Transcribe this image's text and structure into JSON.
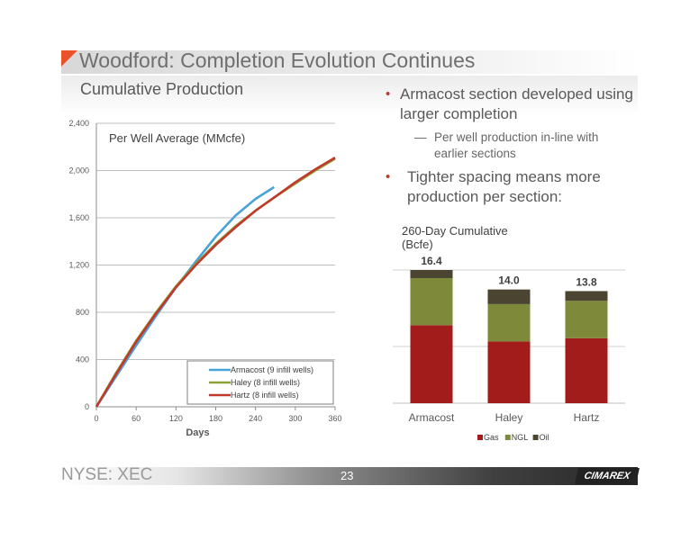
{
  "slide": {
    "title": "Woodford: Completion Evolution Continues",
    "subtitle": "Cumulative Production",
    "bullet1": "Armacost section developed using larger completion",
    "sub_bullet1": "Per well production in-line with earlier sections",
    "bullet2": "Tighter spacing means more production per section:",
    "bullet_marker": "•",
    "dash_marker": "—",
    "footer_left": "NYSE: XEC",
    "page_number": "23",
    "logo_text": "CIMAREX"
  },
  "chart_data": [
    {
      "type": "line",
      "title": "Per Well Average (MMcfe)",
      "xlabel": "Days",
      "ylabel": "",
      "xlim": [
        0,
        360
      ],
      "ylim": [
        0,
        2400
      ],
      "xticks": [
        0,
        60,
        120,
        180,
        240,
        300,
        360
      ],
      "yticks": [
        0,
        400,
        800,
        1200,
        1600,
        2000,
        2400
      ],
      "ytick_labels": [
        "0",
        "400",
        "800",
        "1,200",
        "1,600",
        "2,000",
        "2,400"
      ],
      "grid": "horizontal",
      "legend_position": "bottom-right",
      "series": [
        {
          "name": "Armacost (9 infill wells)",
          "color": "#4aa3d8",
          "x": [
            0,
            30,
            60,
            90,
            120,
            150,
            180,
            210,
            240,
            268
          ],
          "y": [
            0,
            260,
            520,
            770,
            1010,
            1230,
            1440,
            1620,
            1760,
            1860
          ]
        },
        {
          "name": "Haley (8 infill wells)",
          "color": "#8ea23a",
          "x": [
            0,
            30,
            60,
            90,
            120,
            150,
            180,
            210,
            240,
            270,
            300,
            330,
            360
          ],
          "y": [
            0,
            290,
            560,
            800,
            1020,
            1210,
            1380,
            1530,
            1660,
            1780,
            1890,
            2000,
            2100
          ]
        },
        {
          "name": "Hartz (8 infill wells)",
          "color": "#c0392b",
          "x": [
            0,
            30,
            60,
            90,
            120,
            150,
            180,
            210,
            240,
            270,
            300,
            330,
            360
          ],
          "y": [
            0,
            280,
            550,
            790,
            1010,
            1200,
            1370,
            1520,
            1660,
            1780,
            1900,
            2010,
            2110
          ]
        }
      ]
    },
    {
      "type": "bar",
      "stacked": true,
      "title": "260-Day Cumulative (Bcfe)",
      "categories": [
        "Armacost",
        "Haley",
        "Hartz"
      ],
      "totals": [
        16.4,
        14.0,
        13.8
      ],
      "total_labels": [
        "16.4",
        "14.0",
        "13.8"
      ],
      "ylim": [
        0,
        16.4
      ],
      "grid": "horizontal",
      "legend_position": "bottom",
      "series": [
        {
          "name": "Gas",
          "color": "#a31c1c",
          "values": [
            9.6,
            7.6,
            8.0
          ]
        },
        {
          "name": "NGL",
          "color": "#7e8a3a",
          "values": [
            5.8,
            4.6,
            4.6
          ]
        },
        {
          "name": "Oil",
          "color": "#4a4430",
          "values": [
            1.0,
            1.8,
            1.2
          ]
        }
      ]
    }
  ]
}
